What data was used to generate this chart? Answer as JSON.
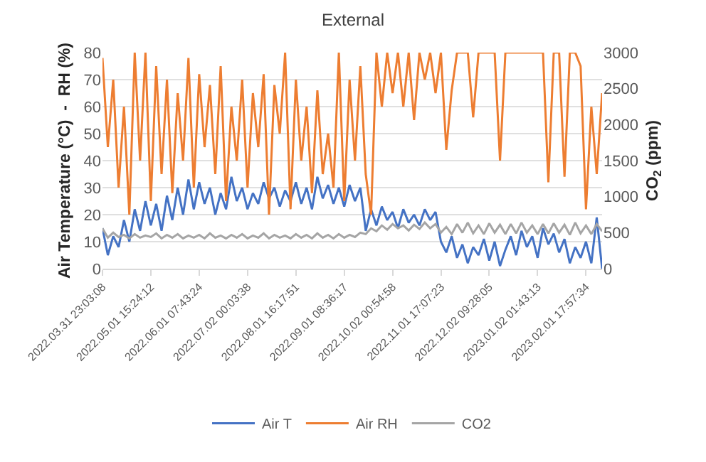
{
  "chart_data": {
    "type": "line",
    "title": "External",
    "ylabel": "Air Temperature (°C)  -  RH (%)",
    "y2label": "CO$_{2}$ (ppm)",
    "categories": [
      "2022.03.31 23:03:08",
      null,
      null,
      null,
      null,
      null,
      null,
      null,
      null,
      "2022.05.01 15:24:12",
      null,
      null,
      null,
      null,
      null,
      null,
      null,
      null,
      "2022.06.01 07:43:24",
      null,
      null,
      null,
      null,
      null,
      null,
      null,
      null,
      "2022.07.02 00:03:38",
      null,
      null,
      null,
      null,
      null,
      null,
      null,
      null,
      "2022.08.01 16:17:51",
      null,
      null,
      null,
      null,
      null,
      null,
      null,
      null,
      "2022.09.01 08:36:17",
      null,
      null,
      null,
      null,
      null,
      null,
      null,
      null,
      "2022.10.02 00:54:58",
      null,
      null,
      null,
      null,
      null,
      null,
      null,
      null,
      "2022.11.01 17:07:23",
      null,
      null,
      null,
      null,
      null,
      null,
      null,
      null,
      "2022.12.02 09:28:05",
      null,
      null,
      null,
      null,
      null,
      null,
      null,
      null,
      "2023.01.02 01:43:13",
      null,
      null,
      null,
      null,
      null,
      null,
      null,
      null,
      "2023.02.01 17:57:34",
      null,
      null,
      null
    ],
    "series": [
      {
        "name": "Air T",
        "color": "#4472c4",
        "values": [
          15,
          5,
          12,
          8,
          18,
          10,
          22,
          14,
          25,
          16,
          24,
          14,
          27,
          18,
          30,
          20,
          33,
          22,
          32,
          24,
          30,
          20,
          28,
          22,
          34,
          25,
          30,
          22,
          28,
          24,
          32,
          26,
          30,
          23,
          29,
          25,
          32,
          24,
          30,
          22,
          34,
          26,
          31,
          24,
          30,
          23,
          31,
          25,
          30,
          14,
          22,
          16,
          23,
          18,
          21,
          15,
          22,
          17,
          20,
          16,
          22,
          18,
          21,
          10,
          6,
          12,
          4,
          9,
          2,
          8,
          5,
          11,
          3,
          10,
          1,
          7,
          12,
          5,
          14,
          8,
          12,
          4,
          15,
          9,
          13,
          6,
          11,
          2,
          8,
          4,
          10,
          2,
          19,
          0
        ]
      },
      {
        "name": "Air RH",
        "color": "#ed7d31",
        "values": [
          78,
          45,
          70,
          30,
          60,
          20,
          80,
          40,
          80,
          25,
          75,
          35,
          70,
          28,
          65,
          40,
          78,
          30,
          72,
          45,
          68,
          35,
          75,
          25,
          60,
          40,
          70,
          30,
          65,
          45,
          72,
          20,
          68,
          50,
          80,
          22,
          70,
          40,
          60,
          28,
          66,
          35,
          50,
          30,
          80,
          25,
          70,
          40,
          75,
          35,
          20,
          80,
          60,
          80,
          65,
          80,
          60,
          80,
          55,
          80,
          70,
          80,
          65,
          80,
          44,
          66,
          80,
          80,
          80,
          56,
          80,
          80,
          80,
          80,
          40,
          80,
          80,
          80,
          80,
          80,
          80,
          80,
          80,
          32,
          80,
          80,
          34,
          80,
          80,
          75,
          22,
          60,
          35,
          65
        ]
      },
      {
        "name": "CO2",
        "color": "#a5a5a5",
        "axis": "y2",
        "values": [
          560,
          430,
          500,
          440,
          470,
          420,
          480,
          430,
          460,
          440,
          490,
          420,
          470,
          430,
          480,
          420,
          460,
          430,
          470,
          420,
          490,
          430,
          460,
          420,
          470,
          430,
          480,
          420,
          460,
          430,
          490,
          420,
          470,
          430,
          460,
          420,
          480,
          430,
          470,
          420,
          490,
          430,
          470,
          420,
          480,
          430,
          470,
          440,
          500,
          480,
          560,
          520,
          600,
          540,
          620,
          560,
          600,
          530,
          610,
          550,
          640,
          560,
          620,
          500,
          580,
          480,
          620,
          500,
          640,
          490,
          600,
          480,
          630,
          500,
          610,
          480,
          620,
          490,
          640,
          500,
          600,
          480,
          620,
          490,
          630,
          500,
          610,
          470,
          640,
          490,
          600,
          480,
          620,
          520
        ]
      }
    ],
    "ylim": [
      0,
      80
    ],
    "yticks": [
      0,
      10,
      20,
      30,
      40,
      50,
      60,
      70,
      80
    ],
    "y2lim": [
      0,
      3000
    ],
    "y2ticks": [
      0,
      500,
      1000,
      1500,
      2000,
      2500,
      3000
    ],
    "grid": "y",
    "legend": "bottom"
  }
}
